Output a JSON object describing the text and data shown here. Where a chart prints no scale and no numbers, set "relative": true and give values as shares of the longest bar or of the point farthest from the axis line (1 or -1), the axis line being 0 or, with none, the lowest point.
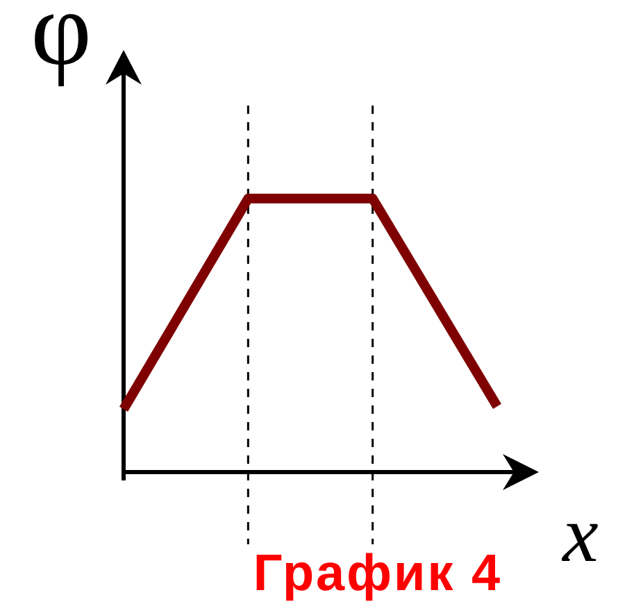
{
  "chart_data": {
    "type": "line",
    "title": "График 4",
    "xlabel": "x",
    "ylabel": "φ",
    "categories": [
      null,
      null,
      null,
      null
    ],
    "relative": true,
    "series": [
      {
        "color": "#7f0000",
        "values": [
          0.23,
          1,
          1,
          0.24
        ]
      }
    ],
    "tick_labels": false,
    "grid": false,
    "marker": "none",
    "line_style": "solid"
  }
}
